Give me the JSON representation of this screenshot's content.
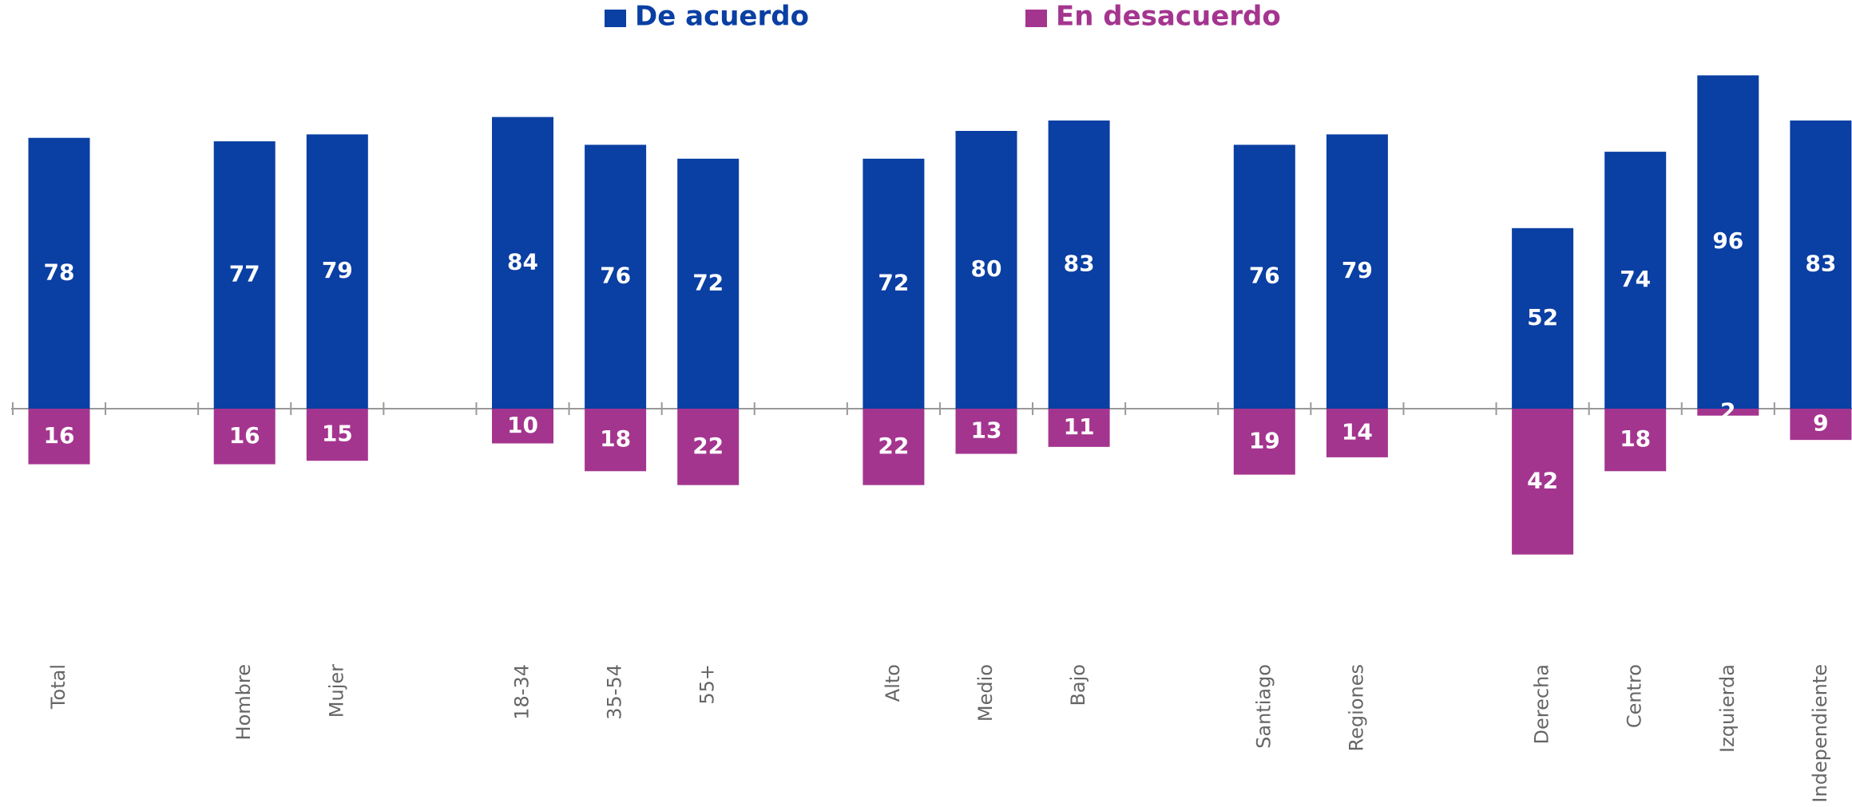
{
  "chart_data": {
    "type": "diverging_bar",
    "categories": [
      "Total",
      null,
      "Hombre",
      "Mujer",
      null,
      "18-34",
      "35-54",
      "55+",
      null,
      "Alto",
      "Medio",
      "Bajo",
      null,
      "Santiago",
      "Regiones",
      null,
      "Derecha",
      "Centro",
      "Izquierda",
      "Independiente"
    ],
    "series": [
      {
        "name": "De acuerdo",
        "color": "#0a3fa3",
        "direction": "up",
        "values": [
          78,
          null,
          77,
          79,
          null,
          84,
          76,
          72,
          null,
          72,
          80,
          83,
          null,
          76,
          79,
          null,
          52,
          74,
          96,
          83
        ]
      },
      {
        "name": "En desacuerdo",
        "color": "#a4358f",
        "direction": "down",
        "values": [
          16,
          null,
          16,
          15,
          null,
          10,
          18,
          22,
          null,
          22,
          13,
          11,
          null,
          19,
          14,
          null,
          42,
          18,
          2,
          9
        ]
      }
    ],
    "ylim": [
      -60,
      100
    ]
  }
}
